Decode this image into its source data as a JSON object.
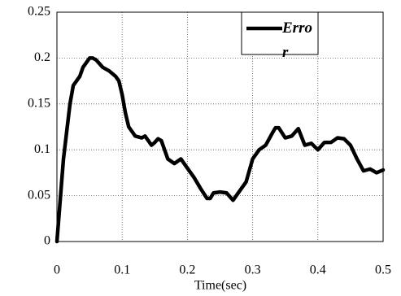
{
  "chart_data": {
    "type": "line",
    "x_label": "Time(sec)",
    "x": [
      0,
      0.01,
      0.02,
      0.025,
      0.03,
      0.035,
      0.04,
      0.05,
      0.055,
      0.06,
      0.07,
      0.08,
      0.09,
      0.095,
      0.1,
      0.105,
      0.11,
      0.12,
      0.13,
      0.135,
      0.14,
      0.145,
      0.15,
      0.155,
      0.16,
      0.165,
      0.17,
      0.18,
      0.19,
      0.2,
      0.21,
      0.22,
      0.23,
      0.235,
      0.24,
      0.25,
      0.26,
      0.27,
      0.28,
      0.29,
      0.3,
      0.31,
      0.32,
      0.33,
      0.335,
      0.34,
      0.35,
      0.36,
      0.37,
      0.38,
      0.39,
      0.4,
      0.41,
      0.42,
      0.43,
      0.44,
      0.45,
      0.46,
      0.47,
      0.48,
      0.49,
      0.5
    ],
    "series": [
      {
        "name": "Error",
        "color": "#000000",
        "values": [
          0,
          0.09,
          0.15,
          0.17,
          0.175,
          0.18,
          0.19,
          0.2,
          0.2,
          0.198,
          0.19,
          0.186,
          0.18,
          0.175,
          0.16,
          0.14,
          0.125,
          0.115,
          0.113,
          0.115,
          0.11,
          0.105,
          0.108,
          0.112,
          0.11,
          0.1,
          0.09,
          0.085,
          0.09,
          0.08,
          0.07,
          0.058,
          0.047,
          0.047,
          0.053,
          0.054,
          0.053,
          0.045,
          0.055,
          0.065,
          0.09,
          0.1,
          0.105,
          0.118,
          0.124,
          0.124,
          0.113,
          0.115,
          0.123,
          0.105,
          0.107,
          0.1,
          0.108,
          0.108,
          0.113,
          0.112,
          0.105,
          0.09,
          0.077,
          0.079,
          0.075,
          0.078
        ]
      }
    ],
    "xlim": [
      0,
      0.5
    ],
    "xticks": [
      0,
      0.1,
      0.2,
      0.3,
      0.4,
      0.5
    ],
    "ylim": [
      0,
      0.25
    ],
    "yticks": [
      0,
      0.05,
      0.1,
      0.15,
      0.2,
      0.25
    ],
    "grid": true,
    "legend": "upper right"
  }
}
